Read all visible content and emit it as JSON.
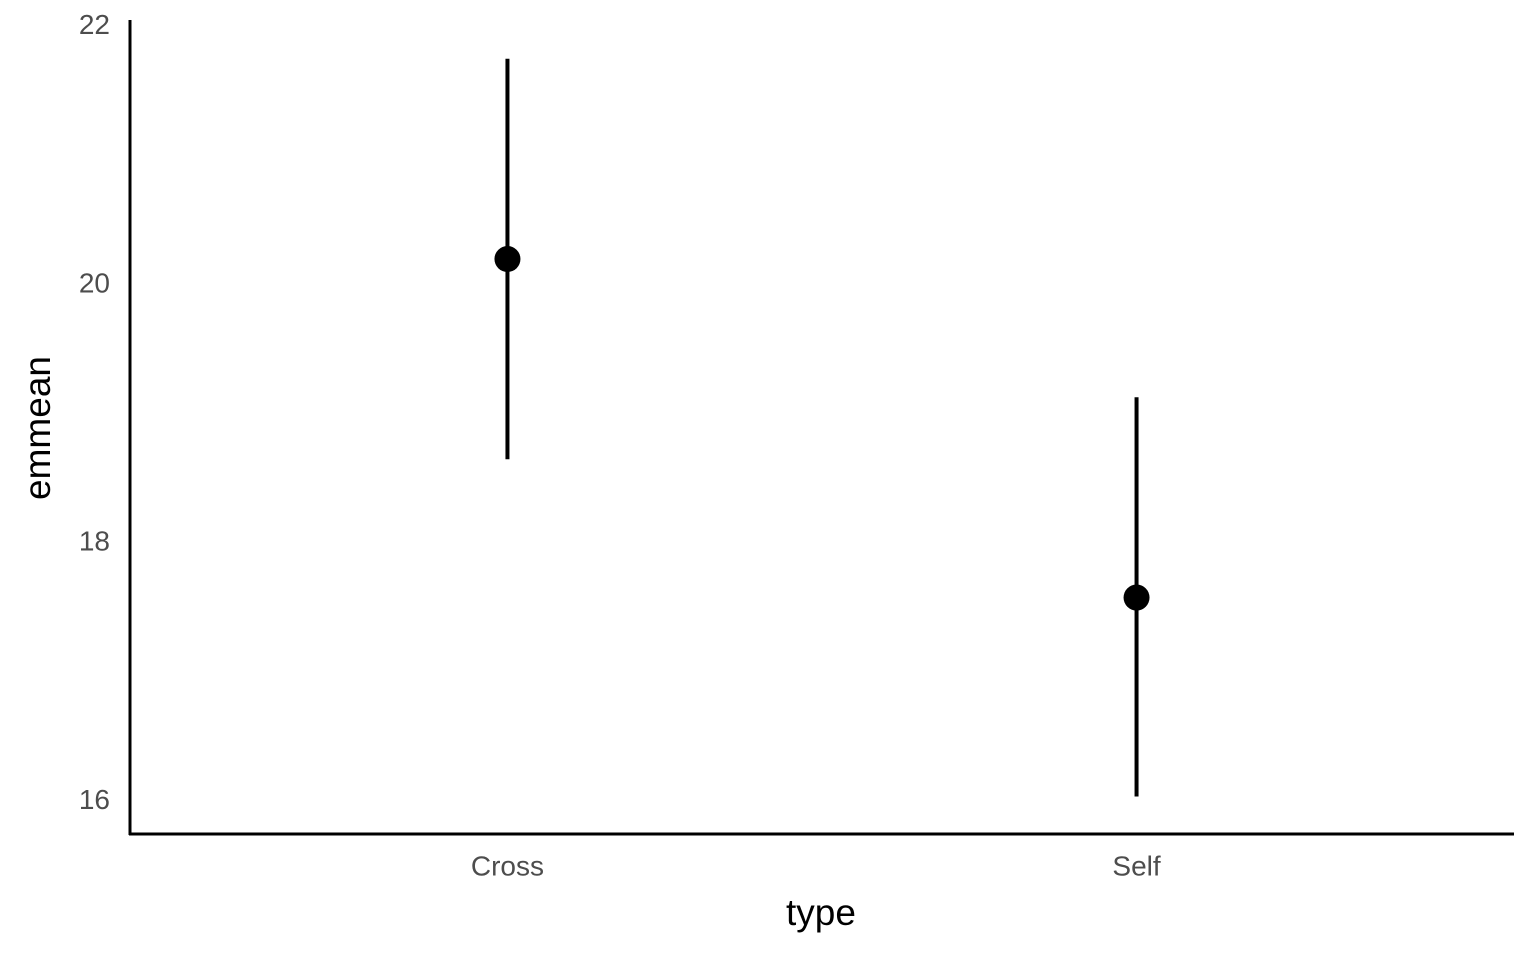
{
  "chart_data": {
    "type": "pointrange",
    "x_label": "type",
    "y_label": "emmean",
    "categories": [
      "Cross",
      "Self"
    ],
    "values": [
      20.2,
      17.58
    ],
    "lower": [
      18.65,
      16.04
    ],
    "upper": [
      21.75,
      19.13
    ],
    "color": "#000000",
    "ylim": [
      15.75,
      22.05
    ],
    "yticks": [
      16,
      18,
      20,
      22
    ],
    "grid": false
  }
}
